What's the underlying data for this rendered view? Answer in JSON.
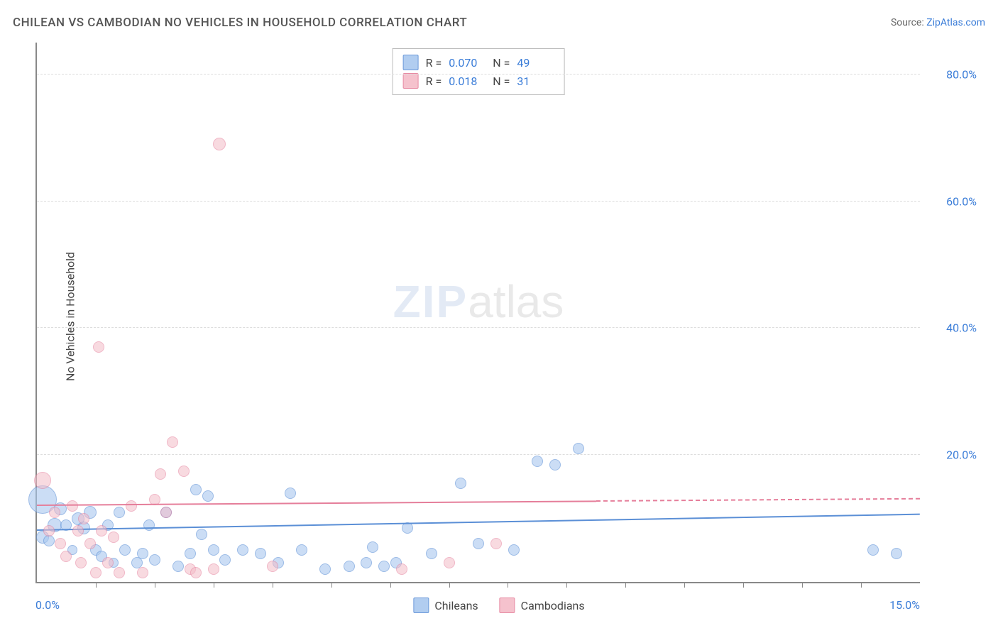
{
  "title": "CHILEAN VS CAMBODIAN NO VEHICLES IN HOUSEHOLD CORRELATION CHART",
  "source": {
    "label": "Source:",
    "name": "ZipAtlas.com"
  },
  "ylabel": "No Vehicles in Household",
  "watermark": {
    "part1": "ZIP",
    "part2": "atlas"
  },
  "chart": {
    "type": "scatter",
    "background_color": "#ffffff",
    "grid_color": "#dddddd",
    "axis_color": "#888888",
    "xlim": [
      0,
      15
    ],
    "ylim": [
      0,
      85
    ],
    "x_tick_step": 1,
    "y_ticks": [
      20,
      40,
      60,
      80
    ],
    "y_tick_labels": [
      "20.0%",
      "40.0%",
      "60.0%",
      "80.0%"
    ],
    "x_min_label": "0.0%",
    "x_max_label": "15.0%",
    "tick_label_color": "#3b7dd8",
    "tick_label_fontsize": 16,
    "title_fontsize": 17,
    "label_fontsize": 16
  },
  "series": [
    {
      "name": "Chileans",
      "fill": "#a9c8ef",
      "stroke": "#5b8fd6",
      "fill_opacity": 0.6,
      "marker": "circle",
      "R_label": "R =",
      "R_value": "0.070",
      "N_label": "N =",
      "N_value": "49",
      "trend": {
        "y_at_xmin": 8.0,
        "y_at_xmax": 10.5,
        "solid_until_x": 15,
        "line_width": 2
      },
      "points": [
        {
          "x": 0.1,
          "y": 13.0,
          "r": 20
        },
        {
          "x": 0.1,
          "y": 7.0,
          "r": 9
        },
        {
          "x": 0.2,
          "y": 6.5,
          "r": 8
        },
        {
          "x": 0.3,
          "y": 9.0,
          "r": 10
        },
        {
          "x": 0.4,
          "y": 11.5,
          "r": 9
        },
        {
          "x": 0.5,
          "y": 9.0,
          "r": 8
        },
        {
          "x": 0.6,
          "y": 5.0,
          "r": 7
        },
        {
          "x": 0.7,
          "y": 10.0,
          "r": 9
        },
        {
          "x": 0.8,
          "y": 8.5,
          "r": 9
        },
        {
          "x": 0.9,
          "y": 11.0,
          "r": 9
        },
        {
          "x": 1.0,
          "y": 5.0,
          "r": 8
        },
        {
          "x": 1.1,
          "y": 4.0,
          "r": 8
        },
        {
          "x": 1.2,
          "y": 9.0,
          "r": 8
        },
        {
          "x": 1.3,
          "y": 3.0,
          "r": 7
        },
        {
          "x": 1.4,
          "y": 11.0,
          "r": 8
        },
        {
          "x": 1.5,
          "y": 5.0,
          "r": 8
        },
        {
          "x": 1.7,
          "y": 3.0,
          "r": 8
        },
        {
          "x": 1.8,
          "y": 4.5,
          "r": 8
        },
        {
          "x": 1.9,
          "y": 9.0,
          "r": 8
        },
        {
          "x": 2.0,
          "y": 3.5,
          "r": 8
        },
        {
          "x": 2.2,
          "y": 11.0,
          "r": 8
        },
        {
          "x": 2.4,
          "y": 2.5,
          "r": 8
        },
        {
          "x": 2.6,
          "y": 4.5,
          "r": 8
        },
        {
          "x": 2.7,
          "y": 14.5,
          "r": 8
        },
        {
          "x": 2.8,
          "y": 7.5,
          "r": 8
        },
        {
          "x": 2.9,
          "y": 13.5,
          "r": 8
        },
        {
          "x": 3.0,
          "y": 5.0,
          "r": 8
        },
        {
          "x": 3.2,
          "y": 3.5,
          "r": 8
        },
        {
          "x": 3.5,
          "y": 5.0,
          "r": 8
        },
        {
          "x": 3.8,
          "y": 4.5,
          "r": 8
        },
        {
          "x": 4.1,
          "y": 3.0,
          "r": 8
        },
        {
          "x": 4.3,
          "y": 14.0,
          "r": 8
        },
        {
          "x": 4.5,
          "y": 5.0,
          "r": 8
        },
        {
          "x": 4.9,
          "y": 2.0,
          "r": 8
        },
        {
          "x": 5.3,
          "y": 2.5,
          "r": 8
        },
        {
          "x": 5.6,
          "y": 3.0,
          "r": 8
        },
        {
          "x": 5.7,
          "y": 5.5,
          "r": 8
        },
        {
          "x": 5.9,
          "y": 2.5,
          "r": 8
        },
        {
          "x": 6.1,
          "y": 3.0,
          "r": 8
        },
        {
          "x": 6.3,
          "y": 8.5,
          "r": 8
        },
        {
          "x": 6.7,
          "y": 4.5,
          "r": 8
        },
        {
          "x": 7.2,
          "y": 15.5,
          "r": 8
        },
        {
          "x": 7.5,
          "y": 6.0,
          "r": 8
        },
        {
          "x": 8.1,
          "y": 5.0,
          "r": 8
        },
        {
          "x": 8.5,
          "y": 19.0,
          "r": 8
        },
        {
          "x": 8.8,
          "y": 18.5,
          "r": 8
        },
        {
          "x": 9.2,
          "y": 21.0,
          "r": 8
        },
        {
          "x": 14.2,
          "y": 5.0,
          "r": 8
        },
        {
          "x": 14.6,
          "y": 4.5,
          "r": 8
        }
      ]
    },
    {
      "name": "Cambodians",
      "fill": "#f4bcc8",
      "stroke": "#e57e9a",
      "fill_opacity": 0.55,
      "marker": "circle",
      "R_label": "R =",
      "R_value": "0.018",
      "N_label": "N =",
      "N_value": "31",
      "trend": {
        "y_at_xmin": 12.0,
        "y_at_xmax": 13.0,
        "solid_until_x": 9.5,
        "line_width": 2
      },
      "points": [
        {
          "x": 0.1,
          "y": 16.0,
          "r": 12
        },
        {
          "x": 0.2,
          "y": 8.0,
          "r": 8
        },
        {
          "x": 0.3,
          "y": 11.0,
          "r": 8
        },
        {
          "x": 0.4,
          "y": 6.0,
          "r": 8
        },
        {
          "x": 0.5,
          "y": 4.0,
          "r": 8
        },
        {
          "x": 0.6,
          "y": 12.0,
          "r": 8
        },
        {
          "x": 0.7,
          "y": 8.0,
          "r": 8
        },
        {
          "x": 0.75,
          "y": 3.0,
          "r": 8
        },
        {
          "x": 0.8,
          "y": 10.0,
          "r": 8
        },
        {
          "x": 0.9,
          "y": 6.0,
          "r": 8
        },
        {
          "x": 1.0,
          "y": 1.5,
          "r": 8
        },
        {
          "x": 1.05,
          "y": 37.0,
          "r": 8
        },
        {
          "x": 1.1,
          "y": 8.0,
          "r": 8
        },
        {
          "x": 1.2,
          "y": 3.0,
          "r": 8
        },
        {
          "x": 1.3,
          "y": 7.0,
          "r": 8
        },
        {
          "x": 1.4,
          "y": 1.5,
          "r": 8
        },
        {
          "x": 1.6,
          "y": 12.0,
          "r": 8
        },
        {
          "x": 1.8,
          "y": 1.5,
          "r": 8
        },
        {
          "x": 2.0,
          "y": 13.0,
          "r": 8
        },
        {
          "x": 2.1,
          "y": 17.0,
          "r": 8
        },
        {
          "x": 2.2,
          "y": 11.0,
          "r": 8
        },
        {
          "x": 2.3,
          "y": 22.0,
          "r": 8
        },
        {
          "x": 2.5,
          "y": 17.5,
          "r": 8
        },
        {
          "x": 2.6,
          "y": 2.0,
          "r": 8
        },
        {
          "x": 2.7,
          "y": 1.5,
          "r": 8
        },
        {
          "x": 3.0,
          "y": 2.0,
          "r": 8
        },
        {
          "x": 3.1,
          "y": 69.0,
          "r": 9
        },
        {
          "x": 4.0,
          "y": 2.5,
          "r": 8
        },
        {
          "x": 6.2,
          "y": 2.0,
          "r": 8
        },
        {
          "x": 7.0,
          "y": 3.0,
          "r": 8
        },
        {
          "x": 7.8,
          "y": 6.0,
          "r": 8
        }
      ]
    }
  ]
}
